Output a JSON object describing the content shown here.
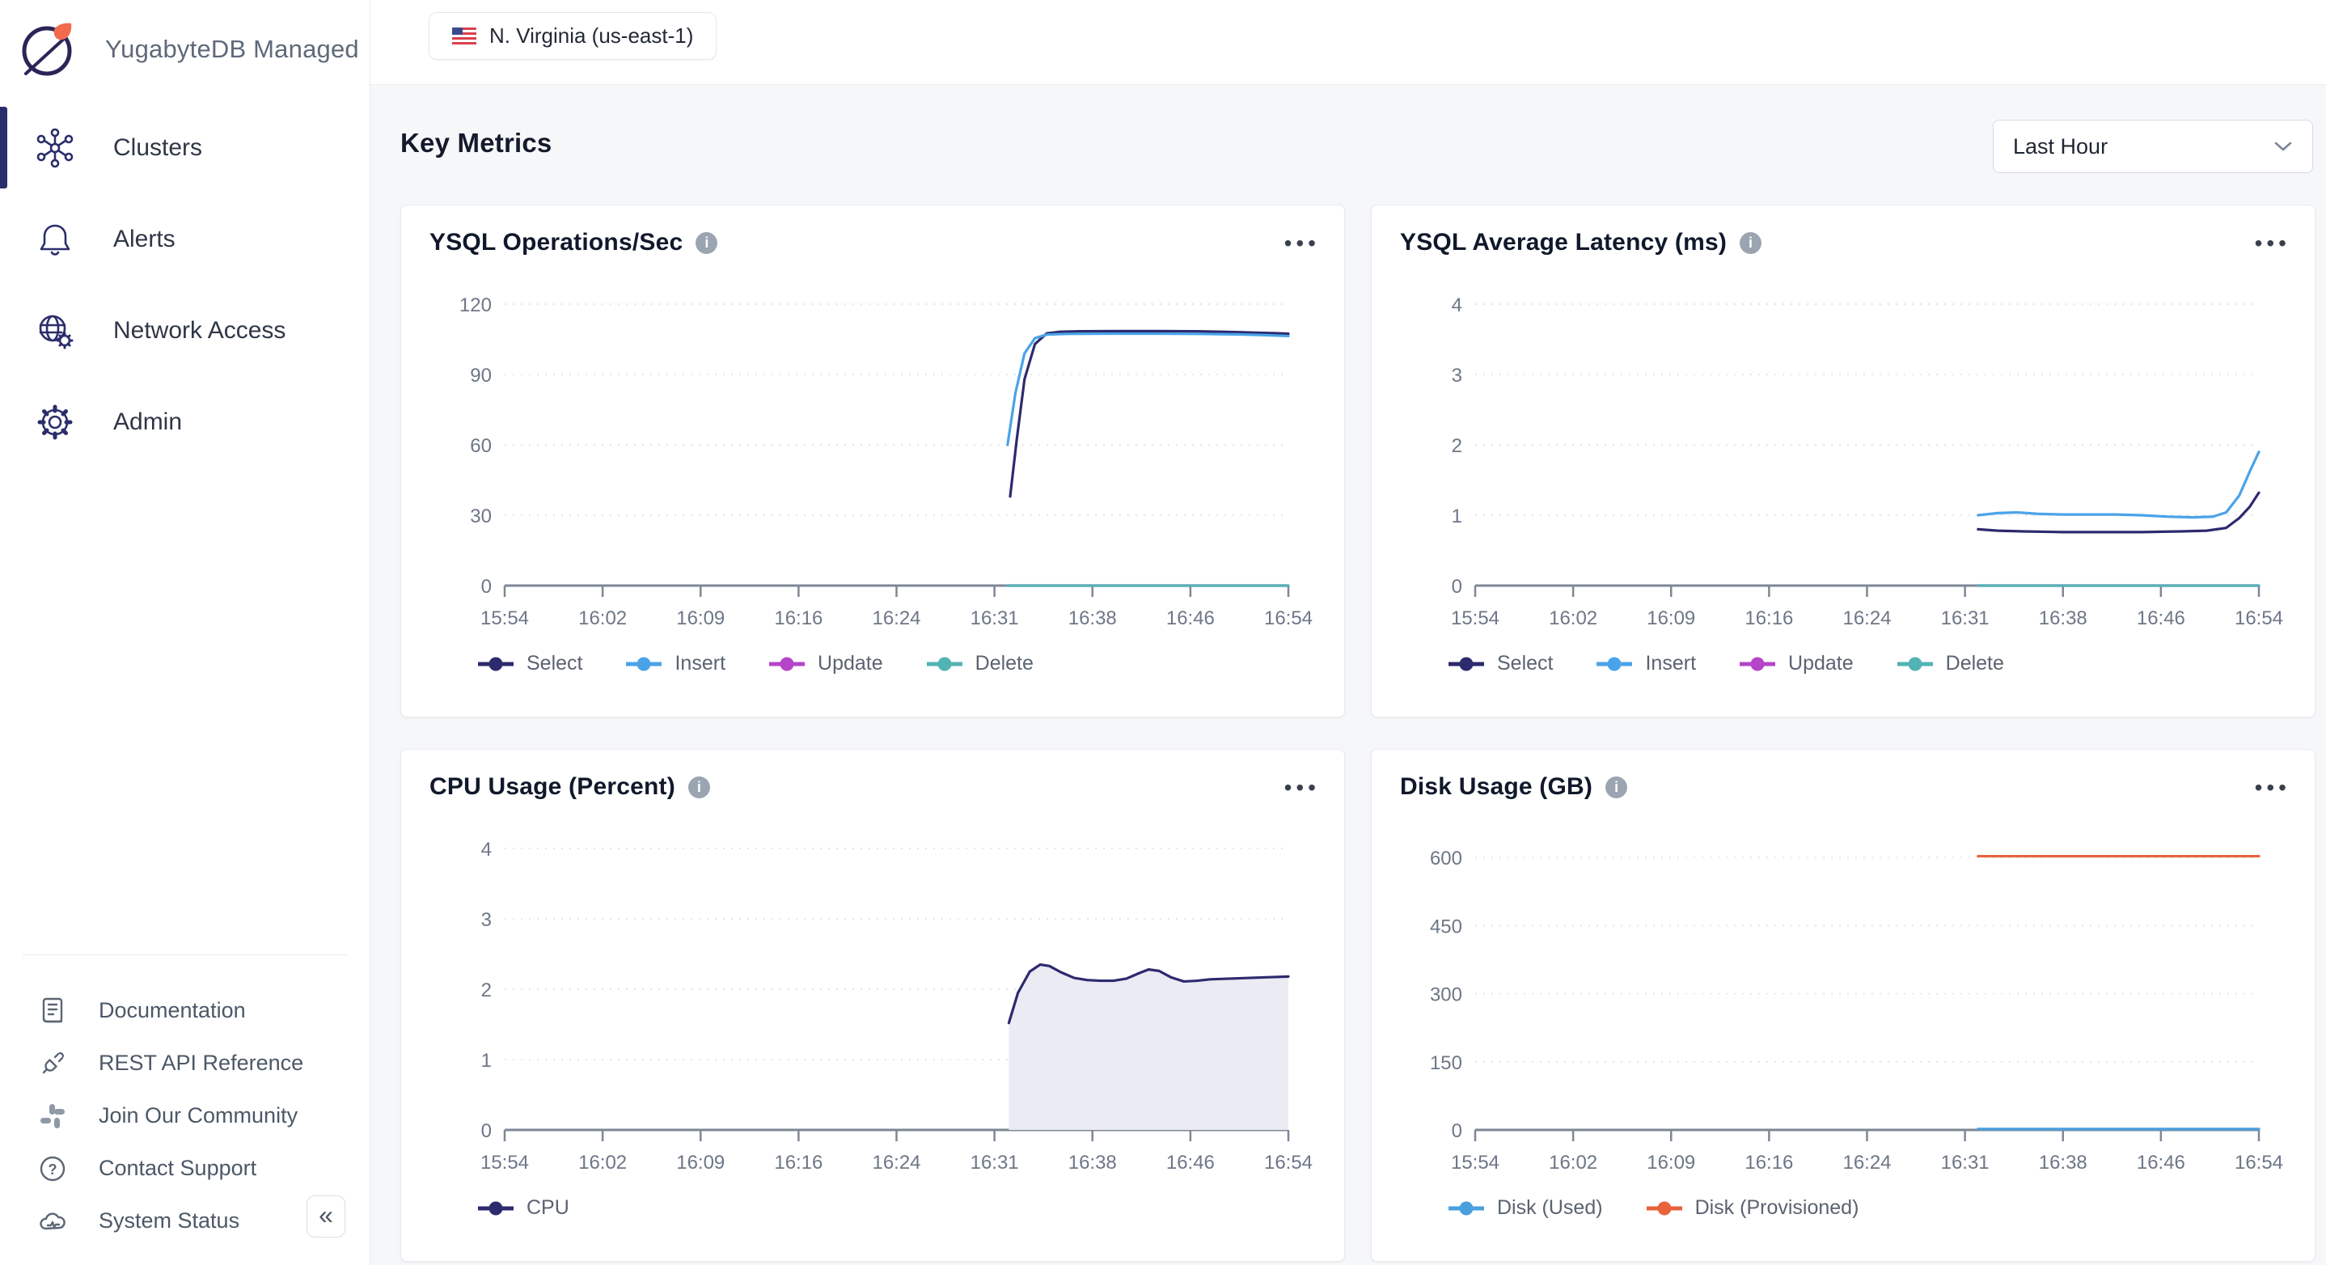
{
  "sidebar": {
    "logo_text": "YugabyteDB Managed",
    "nav": [
      {
        "label": "Clusters",
        "active": true
      },
      {
        "label": "Alerts",
        "active": false
      },
      {
        "label": "Network Access",
        "active": false
      },
      {
        "label": "Admin",
        "active": false
      }
    ],
    "footer_links": [
      {
        "label": "Documentation"
      },
      {
        "label": "REST API Reference"
      },
      {
        "label": "Join Our Community"
      },
      {
        "label": "Contact Support"
      },
      {
        "label": "System Status"
      }
    ]
  },
  "topbar": {
    "region_chip": "N. Virginia (us-east-1)"
  },
  "header": {
    "title": "Key Metrics",
    "time_range": "Last Hour"
  },
  "colors": {
    "brand_navy": "#2b2e6b",
    "series_select": "#2d2a6e",
    "series_insert": "#4aa3e8",
    "series_update": "#b544c8",
    "series_delete": "#52b3b5",
    "series_disk_used": "#4a9fdd",
    "series_disk_provisioned": "#e8633c",
    "cpu_fill": "#ebebf4",
    "grid": "#e1e5ec",
    "axis": "#7e8796"
  },
  "chart_data": [
    {
      "type": "line",
      "title": "YSQL Operations/Sec",
      "x_ticks": [
        "15:54",
        "16:02",
        "16:09",
        "16:16",
        "16:24",
        "16:31",
        "16:38",
        "16:46",
        "16:54"
      ],
      "x_range": [
        0,
        60
      ],
      "y_ticks": [
        0,
        30,
        60,
        90,
        120
      ],
      "ylim": [
        0,
        120
      ],
      "grid": true,
      "legend_position": "bottom-left",
      "series": [
        {
          "name": "Select",
          "color": "#2d2a6e",
          "points": [
            [
              38.7,
              38
            ],
            [
              39.2,
              62
            ],
            [
              39.8,
              88
            ],
            [
              40.6,
              103
            ],
            [
              41.5,
              107.5
            ],
            [
              42.5,
              108.2
            ],
            [
              44,
              108.4
            ],
            [
              47,
              108.5
            ],
            [
              50,
              108.5
            ],
            [
              53,
              108.4
            ],
            [
              55,
              108.2
            ],
            [
              57,
              107.9
            ],
            [
              59,
              107.6
            ],
            [
              60,
              107.4
            ]
          ]
        },
        {
          "name": "Insert",
          "color": "#4aa3e8",
          "points": [
            [
              38.5,
              60
            ],
            [
              39.1,
              82
            ],
            [
              39.8,
              99
            ],
            [
              40.6,
              105.5
            ],
            [
              41.5,
              107
            ],
            [
              43,
              107.3
            ],
            [
              46,
              107.4
            ],
            [
              50,
              107.4
            ],
            [
              53,
              107.3
            ],
            [
              56,
              107.1
            ],
            [
              58,
              106.8
            ],
            [
              60,
              106.4
            ]
          ]
        },
        {
          "name": "Update",
          "color": "#b544c8",
          "points": [
            [
              38.5,
              0
            ],
            [
              60,
              0
            ]
          ]
        },
        {
          "name": "Delete",
          "color": "#52b3b5",
          "points": [
            [
              38.5,
              0
            ],
            [
              60,
              0
            ]
          ]
        }
      ]
    },
    {
      "type": "line",
      "title": "YSQL Average Latency (ms)",
      "x_ticks": [
        "15:54",
        "16:02",
        "16:09",
        "16:16",
        "16:24",
        "16:31",
        "16:38",
        "16:46",
        "16:54"
      ],
      "x_range": [
        0,
        60
      ],
      "y_ticks": [
        0,
        1,
        2,
        3,
        4
      ],
      "ylim": [
        0,
        4
      ],
      "grid": true,
      "legend_position": "bottom-left",
      "series": [
        {
          "name": "Select",
          "color": "#2d2a6e",
          "points": [
            [
              38.5,
              0.8
            ],
            [
              40,
              0.78
            ],
            [
              42,
              0.77
            ],
            [
              45,
              0.76
            ],
            [
              48,
              0.76
            ],
            [
              51,
              0.76
            ],
            [
              54,
              0.77
            ],
            [
              56,
              0.78
            ],
            [
              57.5,
              0.82
            ],
            [
              58.5,
              0.96
            ],
            [
              59.3,
              1.12
            ],
            [
              60,
              1.32
            ]
          ]
        },
        {
          "name": "Insert",
          "color": "#4aa3e8",
          "points": [
            [
              38.5,
              1.0
            ],
            [
              40,
              1.03
            ],
            [
              41.5,
              1.04
            ],
            [
              43,
              1.02
            ],
            [
              45,
              1.01
            ],
            [
              47,
              1.01
            ],
            [
              49,
              1.01
            ],
            [
              51,
              1.0
            ],
            [
              53,
              0.98
            ],
            [
              55,
              0.97
            ],
            [
              56.5,
              0.98
            ],
            [
              57.5,
              1.04
            ],
            [
              58.5,
              1.28
            ],
            [
              59.3,
              1.62
            ],
            [
              60,
              1.9
            ]
          ]
        },
        {
          "name": "Update",
          "color": "#b544c8",
          "points": [
            [
              38.5,
              0
            ],
            [
              60,
              0
            ]
          ]
        },
        {
          "name": "Delete",
          "color": "#52b3b5",
          "points": [
            [
              38.5,
              0
            ],
            [
              60,
              0
            ]
          ]
        }
      ]
    },
    {
      "type": "area",
      "title": "CPU Usage (Percent)",
      "x_ticks": [
        "15:54",
        "16:02",
        "16:09",
        "16:16",
        "16:24",
        "16:31",
        "16:38",
        "16:46",
        "16:54"
      ],
      "x_range": [
        0,
        60
      ],
      "y_ticks": [
        0,
        1,
        2,
        3,
        4
      ],
      "ylim": [
        0,
        4
      ],
      "grid": true,
      "legend_position": "bottom-left",
      "series": [
        {
          "name": "CPU",
          "color": "#2d2a6e",
          "fill": "#ebebf4",
          "points": [
            [
              38.6,
              1.52
            ],
            [
              39.3,
              1.95
            ],
            [
              40.2,
              2.25
            ],
            [
              41,
              2.35
            ],
            [
              41.7,
              2.33
            ],
            [
              42.6,
              2.24
            ],
            [
              43.6,
              2.16
            ],
            [
              44.6,
              2.13
            ],
            [
              45.6,
              2.12
            ],
            [
              46.6,
              2.12
            ],
            [
              47.6,
              2.15
            ],
            [
              48.6,
              2.23
            ],
            [
              49.3,
              2.28
            ],
            [
              50.1,
              2.26
            ],
            [
              51,
              2.17
            ],
            [
              52,
              2.11
            ],
            [
              53,
              2.12
            ],
            [
              54,
              2.14
            ],
            [
              55.5,
              2.15
            ],
            [
              57,
              2.16
            ],
            [
              58.5,
              2.17
            ],
            [
              60,
              2.18
            ]
          ]
        }
      ]
    },
    {
      "type": "line",
      "title": "Disk Usage (GB)",
      "x_ticks": [
        "15:54",
        "16:02",
        "16:09",
        "16:16",
        "16:24",
        "16:31",
        "16:38",
        "16:46",
        "16:54"
      ],
      "x_range": [
        0,
        60
      ],
      "y_ticks": [
        0,
        150,
        300,
        450,
        600
      ],
      "ylim": [
        0,
        620
      ],
      "grid": true,
      "legend_position": "bottom-left",
      "series": [
        {
          "name": "Disk (Used)",
          "color": "#4a9fdd",
          "points": [
            [
              38.5,
              2
            ],
            [
              60,
              2
            ]
          ]
        },
        {
          "name": "Disk (Provisioned)",
          "color": "#e8633c",
          "points": [
            [
              38.5,
              603
            ],
            [
              60,
              603
            ]
          ]
        }
      ]
    }
  ]
}
